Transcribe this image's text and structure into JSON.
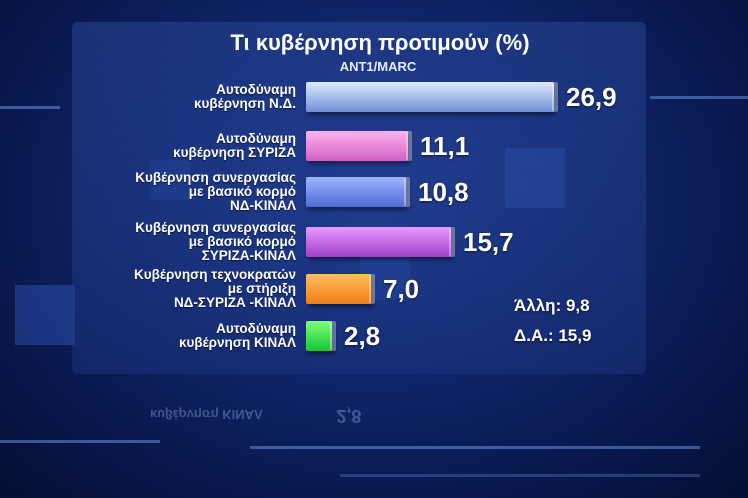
{
  "header": {
    "title": "Τι κυβέρνηση προτιμούν (%)",
    "source": "ANT1/MARC"
  },
  "chart_data": {
    "type": "bar",
    "orientation": "horizontal",
    "title": "Τι κυβέρνηση προτιμούν (%)",
    "xlim": [
      0,
      30
    ],
    "categories": [
      "Αυτοδύναμη κυβέρνηση Ν.Δ.",
      "Αυτοδύναμη κυβέρνηση ΣΥΡΙΖΑ",
      "Κυβέρνηση συνεργασίας με βασικό κορμό ΝΔ-ΚΙΝΑΛ",
      "Κυβέρνηση συνεργασίας με βασικό κορμό ΣΥΡΙΖΑ-ΚΙΝΑΛ",
      "Κυβέρνηση τεχνοκρατών με στήριξη ΝΔ-ΣΥΡΙΖΑ -ΚΙΝΑΛ",
      "Αυτοδύναμη κυβέρνηση ΚΙΝΑΛ"
    ],
    "bars": [
      {
        "lines": [
          "Αυτοδύναμη",
          "κυβέρνηση Ν.Δ."
        ],
        "value": 26.9,
        "display": "26,9",
        "color": "#dfe9ff",
        "color2": "#6f8fd6"
      },
      {
        "lines": [
          "Αυτοδύναμη",
          "κυβέρνηση ΣΥΡΙΖΑ"
        ],
        "value": 11.1,
        "display": "11,1",
        "color": "#ffb3f0",
        "color2": "#d25ec2"
      },
      {
        "lines": [
          "Κυβέρνηση συνεργασίας",
          "με βασικό κορμό",
          "ΝΔ-ΚΙΝΑΛ"
        ],
        "value": 10.8,
        "display": "10,8",
        "color": "#9fb6ff",
        "color2": "#4d6bd4"
      },
      {
        "lines": [
          "Κυβέρνηση συνεργασίας",
          "με βασικό κορμό",
          "ΣΥΡΙΖΑ-ΚΙΝΑΛ"
        ],
        "value": 15.7,
        "display": "15,7",
        "color": "#e59bff",
        "color2": "#a23ec8"
      },
      {
        "lines": [
          "Κυβέρνηση τεχνοκρατών",
          "με στήριξη",
          "ΝΔ-ΣΥΡΙΖΑ -ΚΙΝΑΛ"
        ],
        "value": 7.0,
        "display": "7,0",
        "color": "#ffbf5e",
        "color2": "#ef7d14"
      },
      {
        "lines": [
          "Αυτοδύναμη",
          "κυβέρνηση ΚΙΝΑΛ"
        ],
        "value": 2.8,
        "display": "2,8",
        "color": "#7dff7d",
        "color2": "#17c530"
      }
    ],
    "annotations": [
      {
        "label": "Άλλη:",
        "value": 9.8,
        "display": "9,8"
      },
      {
        "label": "Δ.Α.:",
        "value": 15.9,
        "display": "15,9"
      }
    ]
  },
  "footer": {
    "reflection_text": "κυβέρνηση ΚΙΝΑΛ",
    "reflection_value": "2,8"
  }
}
